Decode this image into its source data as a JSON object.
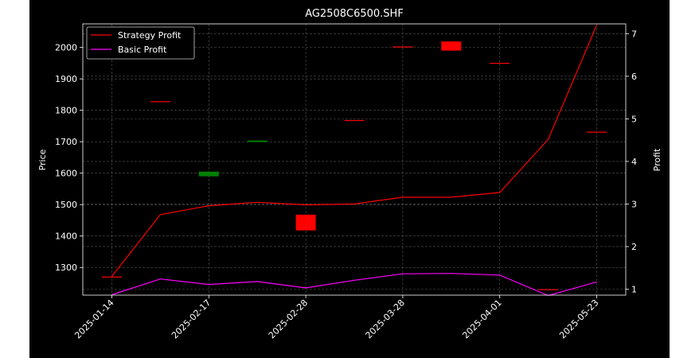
{
  "chart_data": {
    "type": "candlestick+line",
    "title": "AG2508C6500.SHF",
    "xlabel": "",
    "ylabel_left": "Price",
    "ylabel_right": "Profit",
    "grid": true,
    "legend_position": "upper-left",
    "colors": {
      "figure_bg": "#000000",
      "axes_bg": "#000000",
      "text": "#ffffff",
      "grid": "#555555",
      "up": "#008000",
      "down": "#ff0000",
      "strategy": "#ff0000",
      "basic": "#ff00ff"
    },
    "x_tick_labels": [
      "2025-01-14",
      "2025-02-17",
      "2025-02-28",
      "2025-03-28",
      "2025-04-01",
      "2025-05-23"
    ],
    "x_tick_positions": [
      0,
      2,
      4,
      6,
      8,
      10
    ],
    "x_range": [
      -0.6,
      10.6
    ],
    "price_axis": {
      "ylim": [
        1212,
        2075
      ],
      "ticks": [
        1300,
        1400,
        1500,
        1600,
        1700,
        1800,
        1900,
        2000
      ]
    },
    "profit_axis": {
      "ylim": [
        0.86,
        7.23
      ],
      "ticks": [
        1,
        2,
        3,
        4,
        5,
        6,
        7
      ]
    },
    "candles": [
      {
        "x": 0,
        "open": 1271,
        "close": 1269,
        "color": "down"
      },
      {
        "x": 1,
        "open": 1829,
        "close": 1827,
        "color": "down"
      },
      {
        "x": 2,
        "open": 1590,
        "close": 1605,
        "color": "up"
      },
      {
        "x": 3,
        "open": 1699,
        "close": 1704,
        "color": "up"
      },
      {
        "x": 4,
        "open": 1468,
        "close": 1418,
        "color": "down"
      },
      {
        "x": 5,
        "open": 1769,
        "close": 1767,
        "color": "down"
      },
      {
        "x": 6,
        "open": 2003,
        "close": 2001,
        "color": "down"
      },
      {
        "x": 7,
        "open": 2019,
        "close": 1990,
        "color": "down"
      },
      {
        "x": 8,
        "open": 1951,
        "close": 1949,
        "color": "down"
      },
      {
        "x": 9,
        "open": 1231,
        "close": 1229,
        "color": "down"
      },
      {
        "x": 10,
        "open": 1732,
        "close": 1730,
        "color": "down"
      }
    ],
    "series": [
      {
        "name": "Strategy Profit",
        "color": "#ff0000",
        "x": [
          0,
          1,
          2,
          3,
          4,
          5,
          6,
          7,
          8,
          9,
          10
        ],
        "values": [
          1.3,
          2.75,
          2.96,
          3.04,
          2.98,
          3.0,
          3.16,
          3.16,
          3.27,
          4.52,
          7.2
        ]
      },
      {
        "name": "Basic Profit",
        "color": "#ff00ff",
        "x": [
          0,
          1,
          2,
          3,
          4,
          5,
          6,
          7,
          8,
          9,
          10
        ],
        "values": [
          0.87,
          1.24,
          1.11,
          1.18,
          1.03,
          1.21,
          1.36,
          1.37,
          1.33,
          0.85,
          1.17
        ]
      }
    ]
  }
}
